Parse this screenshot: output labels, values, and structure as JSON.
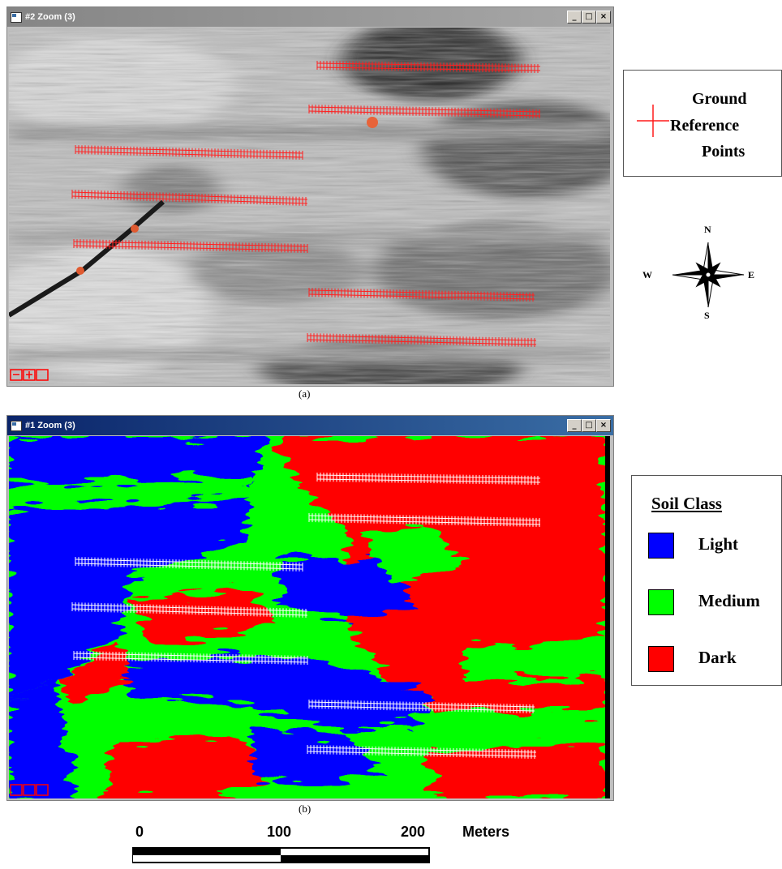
{
  "panel_a": {
    "title": "#2 Zoom (3)",
    "caption": "(a)",
    "legend": {
      "line1": "Ground",
      "line2": "Reference",
      "line3": "Points",
      "marker_color": "#ff1a1a"
    }
  },
  "panel_b": {
    "title": "#1 Zoom (3)",
    "caption": "(b)",
    "legend": {
      "title": "Soil Class",
      "items": [
        {
          "label": "Light",
          "color": "#0000ff"
        },
        {
          "label": "Medium",
          "color": "#00ff00"
        },
        {
          "label": "Dark",
          "color": "#ff0000"
        }
      ]
    }
  },
  "window_buttons": {
    "minimize": "_",
    "maximize": "□",
    "close": "×"
  },
  "compass": {
    "n": "N",
    "s": "S",
    "e": "E",
    "w": "W"
  },
  "scalebar": {
    "tick0": "0",
    "tick1": "100",
    "tick2": "200",
    "unit": "Meters"
  },
  "icons": {
    "window": "window-icon",
    "compass": "compass-rose-icon",
    "zoom": "zoom-controls-icon",
    "cross": "plus-cross-icon"
  }
}
